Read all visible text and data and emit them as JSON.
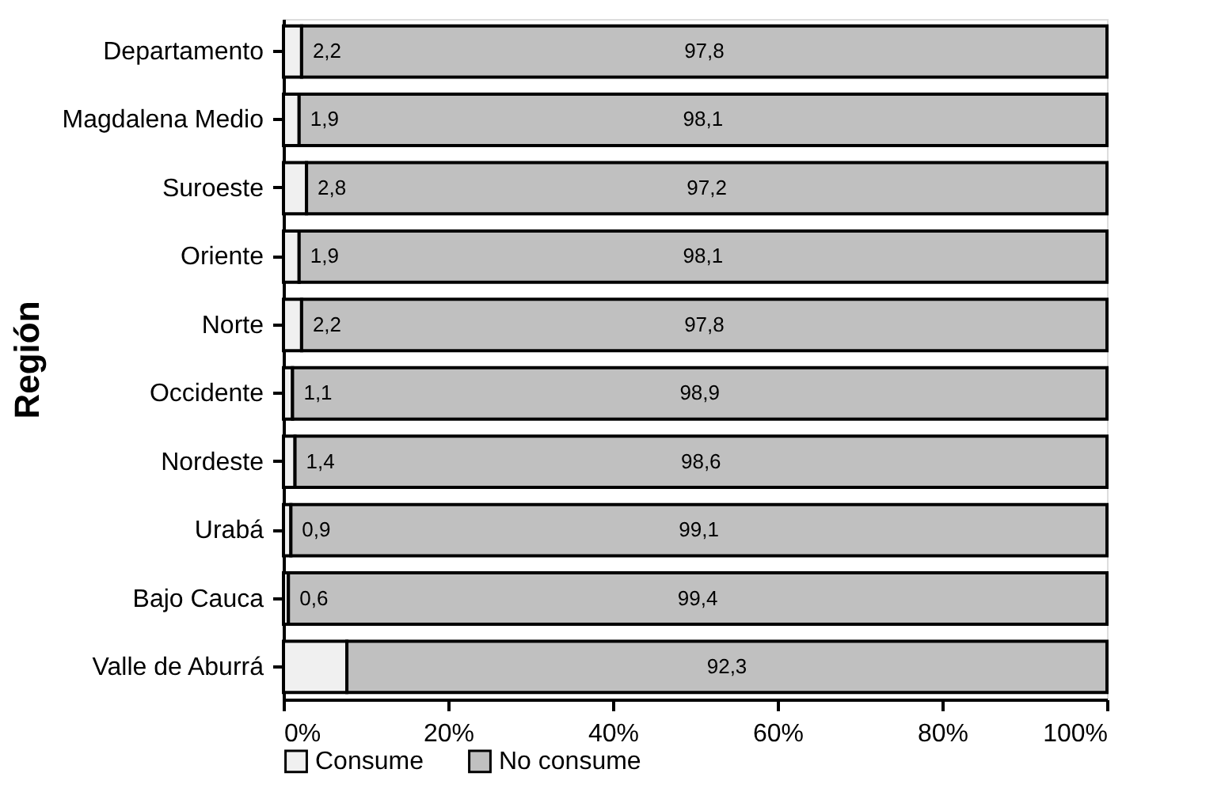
{
  "chart_data": {
    "type": "bar",
    "orientation": "horizontal",
    "stacked": true,
    "ylabel": "Región",
    "categories": [
      "Departamento",
      "Magdalena Medio",
      "Suroeste",
      "Oriente",
      "Norte",
      "Occidente",
      "Nordeste",
      "Urabá",
      "Bajo Cauca",
      "Valle de Aburrá"
    ],
    "series": [
      {
        "name": "Consume",
        "color": "#f0f0f0",
        "values": [
          2.2,
          1.9,
          2.8,
          1.9,
          2.2,
          1.1,
          1.4,
          0.9,
          0.6,
          7.7
        ],
        "value_labels": [
          "2,2",
          "1,9",
          "2,8",
          "1,9",
          "2,2",
          "1,1",
          "1,4",
          "0,9",
          "0,6",
          null
        ]
      },
      {
        "name": "No consume",
        "color": "#c0c0c0",
        "values": [
          97.8,
          98.1,
          97.2,
          98.1,
          97.8,
          98.9,
          98.6,
          99.1,
          99.4,
          92.3
        ],
        "value_labels": [
          "97,8",
          "98,1",
          "97,2",
          "98,1",
          "97,8",
          "98,9",
          "98,6",
          "99,1",
          "99,4",
          "92,3"
        ]
      }
    ],
    "xlim": [
      0,
      100
    ],
    "xticks": [
      {
        "value": 0,
        "label": "0%"
      },
      {
        "value": 20,
        "label": "20%"
      },
      {
        "value": 40,
        "label": "40%"
      },
      {
        "value": 60,
        "label": "60%"
      },
      {
        "value": 80,
        "label": "80%"
      },
      {
        "value": 100,
        "label": "100%"
      }
    ],
    "grid": false,
    "legend": "bottom"
  }
}
